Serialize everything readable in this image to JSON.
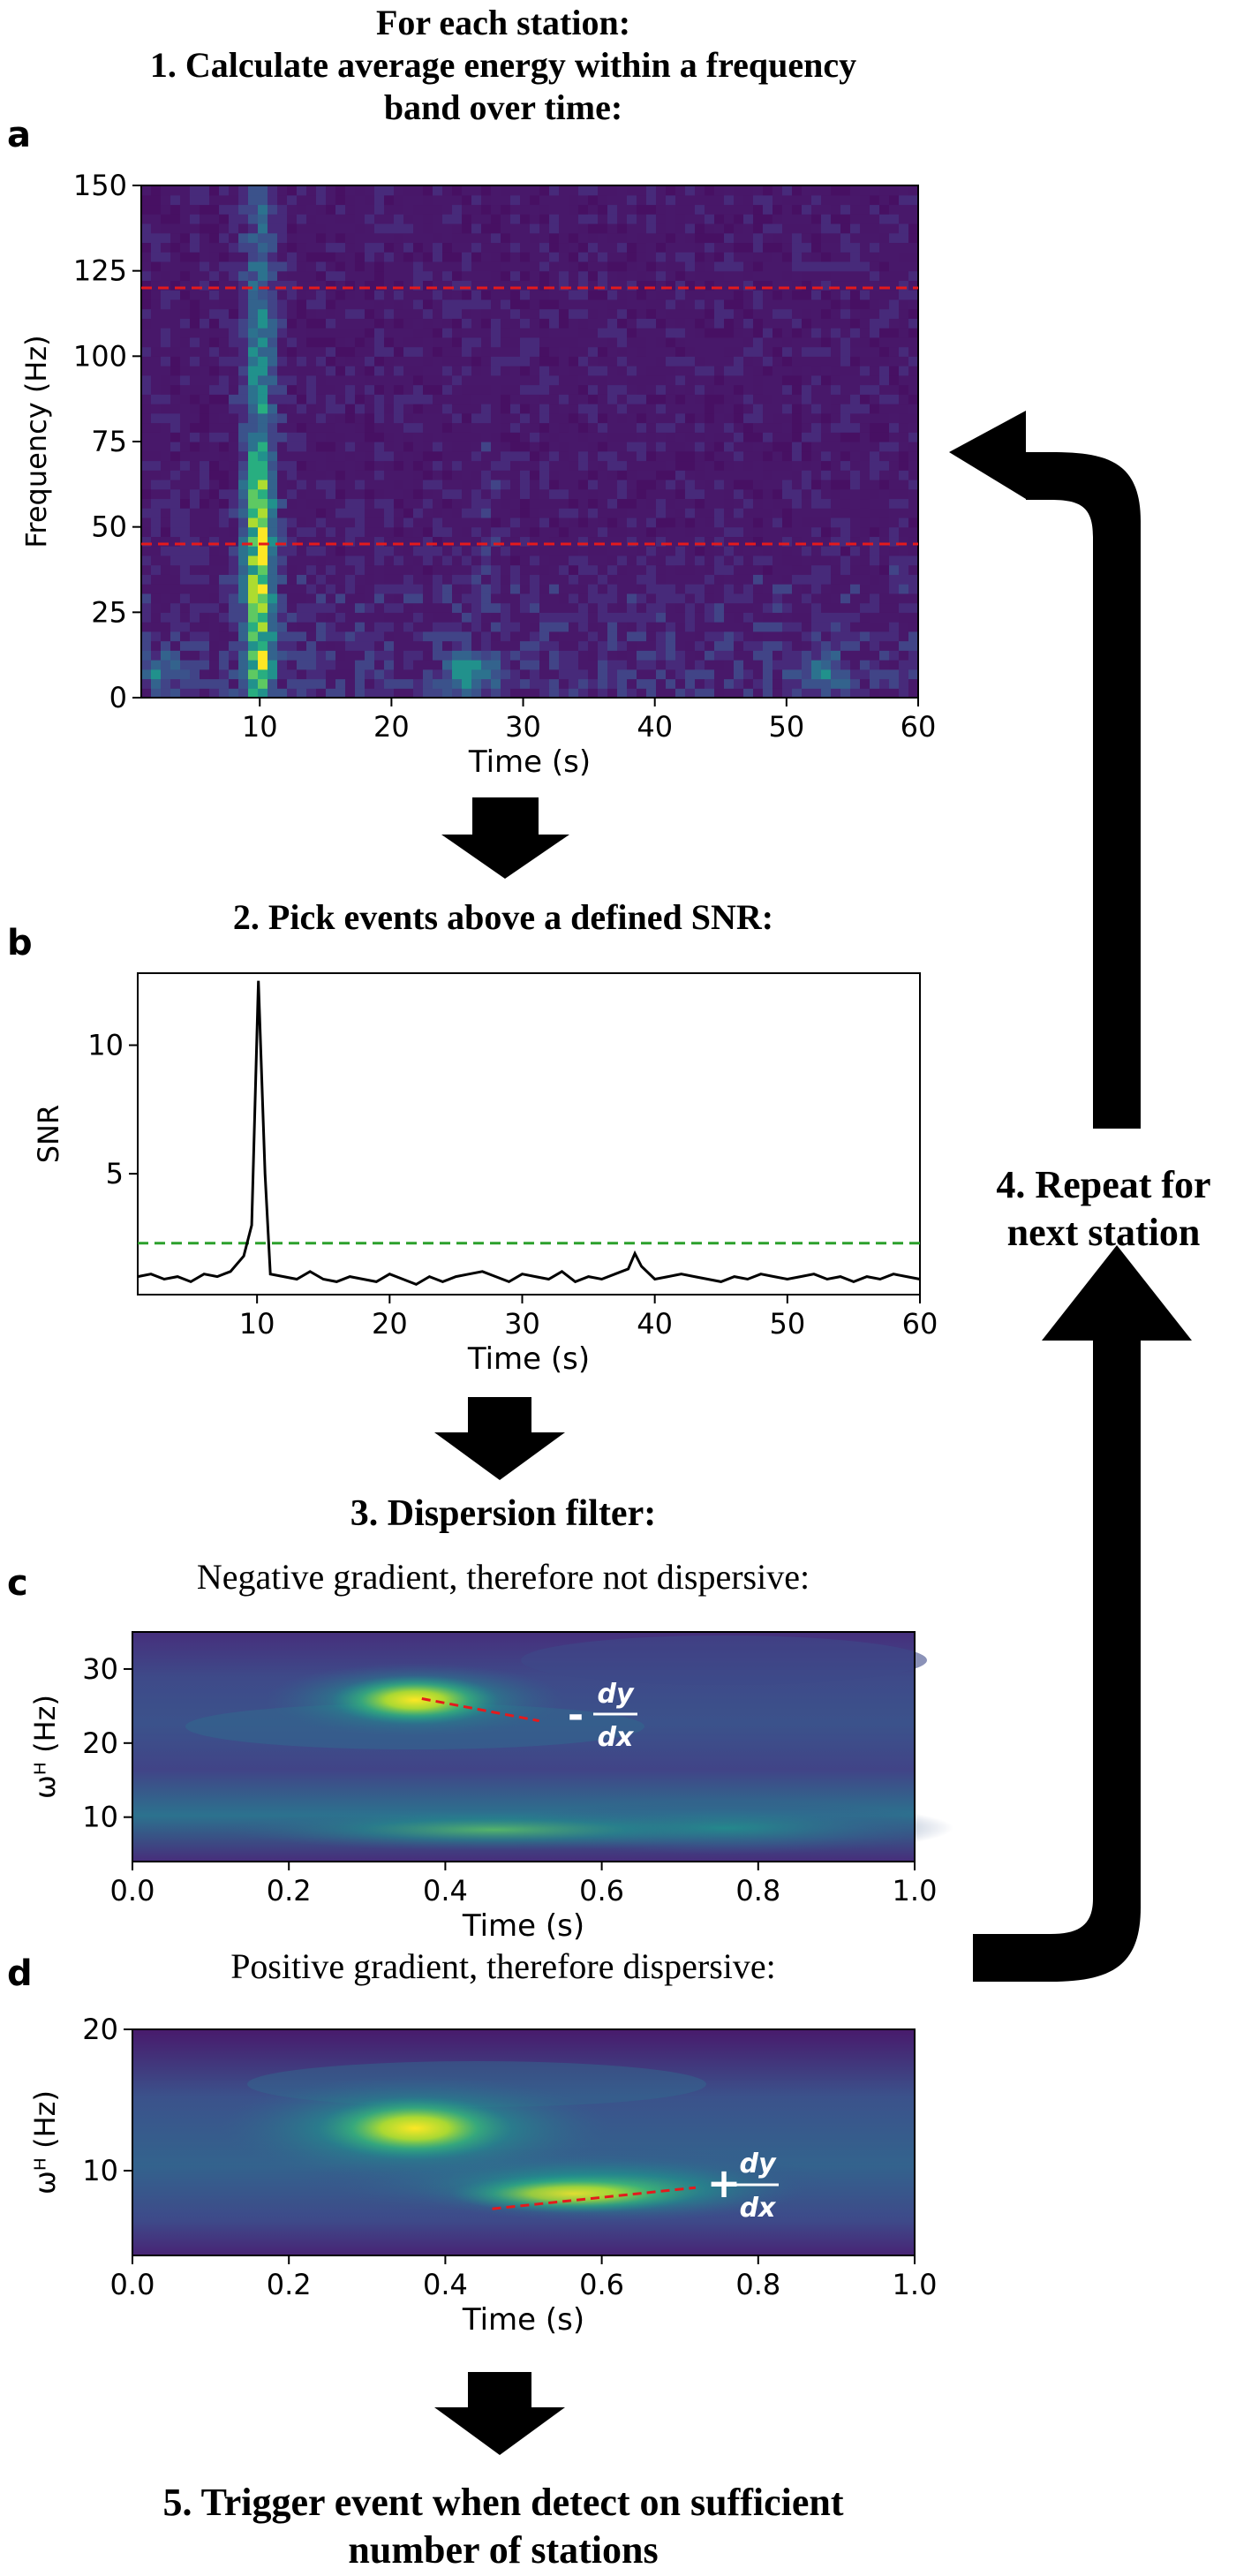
{
  "titles": {
    "header": "For each station:",
    "step1_line1": "1.   Calculate average energy within a frequency",
    "step1_line2": "band over time:",
    "step2": "2. Pick events above a defined SNR:",
    "step3": "3. Dispersion filter:",
    "step4_line1": "4. Repeat for",
    "step4_line2": "next station",
    "step5_line1": "5. Trigger event when detect on sufficient",
    "step5_line2": "number of stations"
  },
  "panel_letters": {
    "a": "a",
    "b": "b",
    "c": "c",
    "d": "d"
  },
  "captions": {
    "c": "Negative gradient, therefore not dispersive:",
    "d": "Positive gradient, therefore dispersive:"
  },
  "annotations": {
    "c_sign": "-",
    "d_sign": "+",
    "deriv_num": "dy",
    "deriv_den": "dx"
  },
  "colors": {
    "viridis_dark": "#440154",
    "viridis_yellow": "#fde725",
    "red_dashed": "#e41a1c",
    "green_dashed": "#2ca02c",
    "arrow": "#000000"
  },
  "chart_data": [
    {
      "id": "a",
      "type": "heatmap",
      "title": "",
      "xlabel": "Time (s)",
      "ylabel": "Frequency (Hz)",
      "xlim": [
        1,
        60
      ],
      "ylim": [
        0,
        150
      ],
      "xticks": [
        "10",
        "20",
        "30",
        "40",
        "50",
        "60"
      ],
      "yticks": [
        "0",
        "25",
        "50",
        "75",
        "100",
        "125",
        "150"
      ],
      "band_lines": [
        45,
        120
      ],
      "colormap": "viridis"
    },
    {
      "id": "b",
      "type": "line",
      "title": "",
      "xlabel": "Time (s)",
      "ylabel": "SNR",
      "xlim": [
        1,
        60
      ],
      "ylim": [
        0.3,
        12.8
      ],
      "xticks": [
        "10",
        "20",
        "30",
        "40",
        "50",
        "60"
      ],
      "yticks": [
        "5",
        "10"
      ],
      "threshold": 2.3,
      "x": [
        1,
        2,
        3,
        4,
        5,
        6,
        7,
        8,
        9,
        9.6,
        10.1,
        10.6,
        11,
        12,
        13,
        14,
        15,
        16,
        17,
        18,
        19,
        20,
        21,
        22,
        23,
        24,
        25,
        26,
        27,
        28,
        29,
        30,
        31,
        32,
        33,
        34,
        35,
        36,
        37,
        38,
        38.5,
        39,
        40,
        41,
        42,
        43,
        44,
        45,
        46,
        47,
        48,
        49,
        50,
        51,
        52,
        53,
        54,
        55,
        56,
        57,
        58,
        59,
        60
      ],
      "y": [
        1.0,
        1.1,
        0.9,
        1.0,
        0.8,
        1.1,
        1.0,
        1.2,
        1.8,
        3.0,
        12.5,
        5.0,
        1.1,
        1.0,
        0.9,
        1.2,
        0.9,
        0.8,
        1.0,
        0.9,
        0.8,
        1.1,
        0.9,
        0.7,
        1.0,
        0.8,
        1.0,
        1.1,
        1.2,
        1.0,
        0.8,
        1.1,
        1.0,
        0.9,
        1.2,
        0.8,
        1.0,
        0.9,
        1.1,
        1.3,
        1.9,
        1.4,
        0.9,
        1.0,
        1.1,
        1.0,
        0.9,
        0.8,
        1.0,
        0.9,
        1.1,
        1.0,
        0.9,
        1.0,
        1.1,
        0.9,
        1.0,
        0.8,
        1.0,
        0.9,
        1.1,
        1.0,
        0.9
      ]
    },
    {
      "id": "c",
      "type": "heatmap",
      "title": "",
      "xlabel": "Time (s)",
      "ylabel": "ωᴴ (Hz)",
      "xlim": [
        0,
        1
      ],
      "ylim": [
        4,
        35
      ],
      "xticks": [
        "0.0",
        "0.2",
        "0.4",
        "0.6",
        "0.8",
        "1.0"
      ],
      "yticks": [
        "10",
        "20",
        "30"
      ],
      "gradient_line": {
        "x": [
          0.37,
          0.52
        ],
        "y": [
          26,
          23
        ]
      },
      "colormap": "viridis"
    },
    {
      "id": "d",
      "type": "heatmap",
      "title": "",
      "xlabel": "Time (s)",
      "ylabel": "ωᴴ (Hz)",
      "xlim": [
        0,
        1
      ],
      "ylim": [
        4,
        20
      ],
      "xticks": [
        "0.0",
        "0.2",
        "0.4",
        "0.6",
        "0.8",
        "1.0"
      ],
      "yticks": [
        "10",
        "20"
      ],
      "gradient_line": {
        "x": [
          0.46,
          0.72
        ],
        "y": [
          7.3,
          8.8
        ]
      },
      "colormap": "viridis"
    }
  ]
}
